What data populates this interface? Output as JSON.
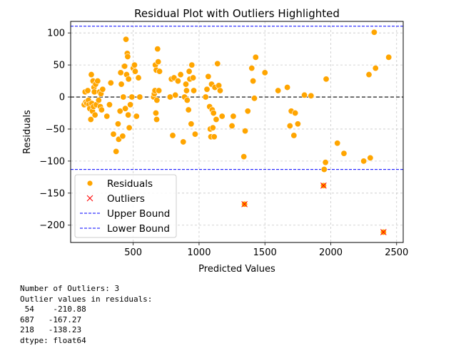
{
  "chart_data": {
    "type": "scatter",
    "title": "Residual Plot with Outliers Highlighted",
    "xlabel": "Predicted Values",
    "ylabel": "Residuals",
    "xlim": [
      25,
      2550
    ],
    "ylim": [
      -227,
      118
    ],
    "xticks": [
      500,
      1000,
      1500,
      2000,
      2500
    ],
    "yticks": [
      -200,
      -150,
      -100,
      -50,
      0,
      50,
      100
    ],
    "xtick_labels": [
      "500",
      "1000",
      "1500",
      "2000",
      "2500"
    ],
    "ytick_labels": [
      "−200",
      "−150",
      "−100",
      "−50",
      "0",
      "50",
      "100"
    ],
    "grid": true,
    "zero_line": 0,
    "upper_bound": 110.5,
    "lower_bound": -113,
    "colors": {
      "residuals": "#FFA500",
      "outliers": "#FF0000",
      "bounds": "#0000FF",
      "zero": "#000000"
    },
    "legend_position": "lower-left",
    "legend": [
      "Residuals",
      "Outliers",
      "Upper Bound",
      "Lower Bound"
    ],
    "residuals": [
      [
        128,
        -12
      ],
      [
        135,
        8
      ],
      [
        140,
        -8
      ],
      [
        148,
        -10
      ],
      [
        155,
        10
      ],
      [
        160,
        -5
      ],
      [
        165,
        -12
      ],
      [
        170,
        -18
      ],
      [
        178,
        -35
      ],
      [
        182,
        35
      ],
      [
        186,
        -10
      ],
      [
        190,
        -22
      ],
      [
        195,
        25
      ],
      [
        198,
        -15
      ],
      [
        202,
        15
      ],
      [
        205,
        8
      ],
      [
        210,
        -28
      ],
      [
        215,
        20
      ],
      [
        220,
        -12
      ],
      [
        230,
        25
      ],
      [
        238,
        -5
      ],
      [
        245,
        8
      ],
      [
        250,
        -15
      ],
      [
        255,
        5
      ],
      [
        260,
        -20
      ],
      [
        268,
        12
      ],
      [
        300,
        -30
      ],
      [
        320,
        -12
      ],
      [
        330,
        22
      ],
      [
        350,
        -58
      ],
      [
        370,
        -85
      ],
      [
        385,
        -42
      ],
      [
        390,
        -66
      ],
      [
        400,
        -22
      ],
      [
        405,
        38
      ],
      [
        410,
        20
      ],
      [
        420,
        -61
      ],
      [
        425,
        0
      ],
      [
        430,
        48
      ],
      [
        435,
        48
      ],
      [
        440,
        -18
      ],
      [
        445,
        90
      ],
      [
        450,
        35
      ],
      [
        455,
        68
      ],
      [
        458,
        63
      ],
      [
        462,
        -28
      ],
      [
        465,
        28
      ],
      [
        470,
        -48
      ],
      [
        478,
        -12
      ],
      [
        490,
        0
      ],
      [
        500,
        45
      ],
      [
        510,
        50
      ],
      [
        515,
        40
      ],
      [
        525,
        -30
      ],
      [
        540,
        30
      ],
      [
        550,
        0
      ],
      [
        655,
        0
      ],
      [
        660,
        5
      ],
      [
        665,
        10
      ],
      [
        668,
        50
      ],
      [
        672,
        -25
      ],
      [
        675,
        42
      ],
      [
        678,
        -35
      ],
      [
        680,
        -5
      ],
      [
        685,
        75
      ],
      [
        690,
        55
      ],
      [
        695,
        10
      ],
      [
        700,
        40
      ],
      [
        780,
        0
      ],
      [
        790,
        28
      ],
      [
        800,
        -60
      ],
      [
        810,
        30
      ],
      [
        820,
        3
      ],
      [
        840,
        25
      ],
      [
        860,
        35
      ],
      [
        880,
        -70
      ],
      [
        890,
        0
      ],
      [
        900,
        20
      ],
      [
        905,
        10
      ],
      [
        910,
        -5
      ],
      [
        920,
        -20
      ],
      [
        925,
        40
      ],
      [
        930,
        28
      ],
      [
        940,
        -42
      ],
      [
        945,
        50
      ],
      [
        955,
        30
      ],
      [
        960,
        10
      ],
      [
        970,
        -58
      ],
      [
        1050,
        0
      ],
      [
        1060,
        12
      ],
      [
        1070,
        32
      ],
      [
        1080,
        -15
      ],
      [
        1085,
        -50
      ],
      [
        1090,
        -62
      ],
      [
        1095,
        20
      ],
      [
        1100,
        -20
      ],
      [
        1105,
        -48
      ],
      [
        1110,
        -25
      ],
      [
        1115,
        -62
      ],
      [
        1120,
        15
      ],
      [
        1130,
        -35
      ],
      [
        1140,
        52
      ],
      [
        1150,
        18
      ],
      [
        1160,
        10
      ],
      [
        1175,
        -30
      ],
      [
        1250,
        -45
      ],
      [
        1260,
        -30
      ],
      [
        1340,
        -93
      ],
      [
        1350,
        -53
      ],
      [
        1370,
        -22
      ],
      [
        1400,
        45
      ],
      [
        1410,
        25
      ],
      [
        1420,
        -2
      ],
      [
        1430,
        62
      ],
      [
        1500,
        38
      ],
      [
        1600,
        10
      ],
      [
        1670,
        15
      ],
      [
        1690,
        -45
      ],
      [
        1700,
        -22
      ],
      [
        1720,
        -60
      ],
      [
        1730,
        -25
      ],
      [
        1750,
        -42
      ],
      [
        1800,
        3
      ],
      [
        1850,
        2
      ],
      [
        1950,
        -113
      ],
      [
        1960,
        -102
      ],
      [
        1965,
        28
      ],
      [
        2050,
        -72
      ],
      [
        2100,
        -88
      ],
      [
        2250,
        -100
      ],
      [
        2290,
        35
      ],
      [
        2300,
        -95
      ],
      [
        2330,
        101
      ],
      [
        2340,
        45
      ],
      [
        2440,
        62
      ],
      [
        1345,
        -167.27
      ],
      [
        1945,
        -138.23
      ],
      [
        2400,
        -210.88
      ]
    ],
    "outliers": [
      [
        1345,
        -167.27
      ],
      [
        1945,
        -138.23
      ],
      [
        2400,
        -210.88
      ]
    ]
  },
  "console": {
    "lines": [
      "Number of Outliers: 3",
      "Outlier values in residuals:",
      " 54    -210.88",
      "687   -167.27",
      "218   -138.23",
      "dtype: float64"
    ]
  }
}
